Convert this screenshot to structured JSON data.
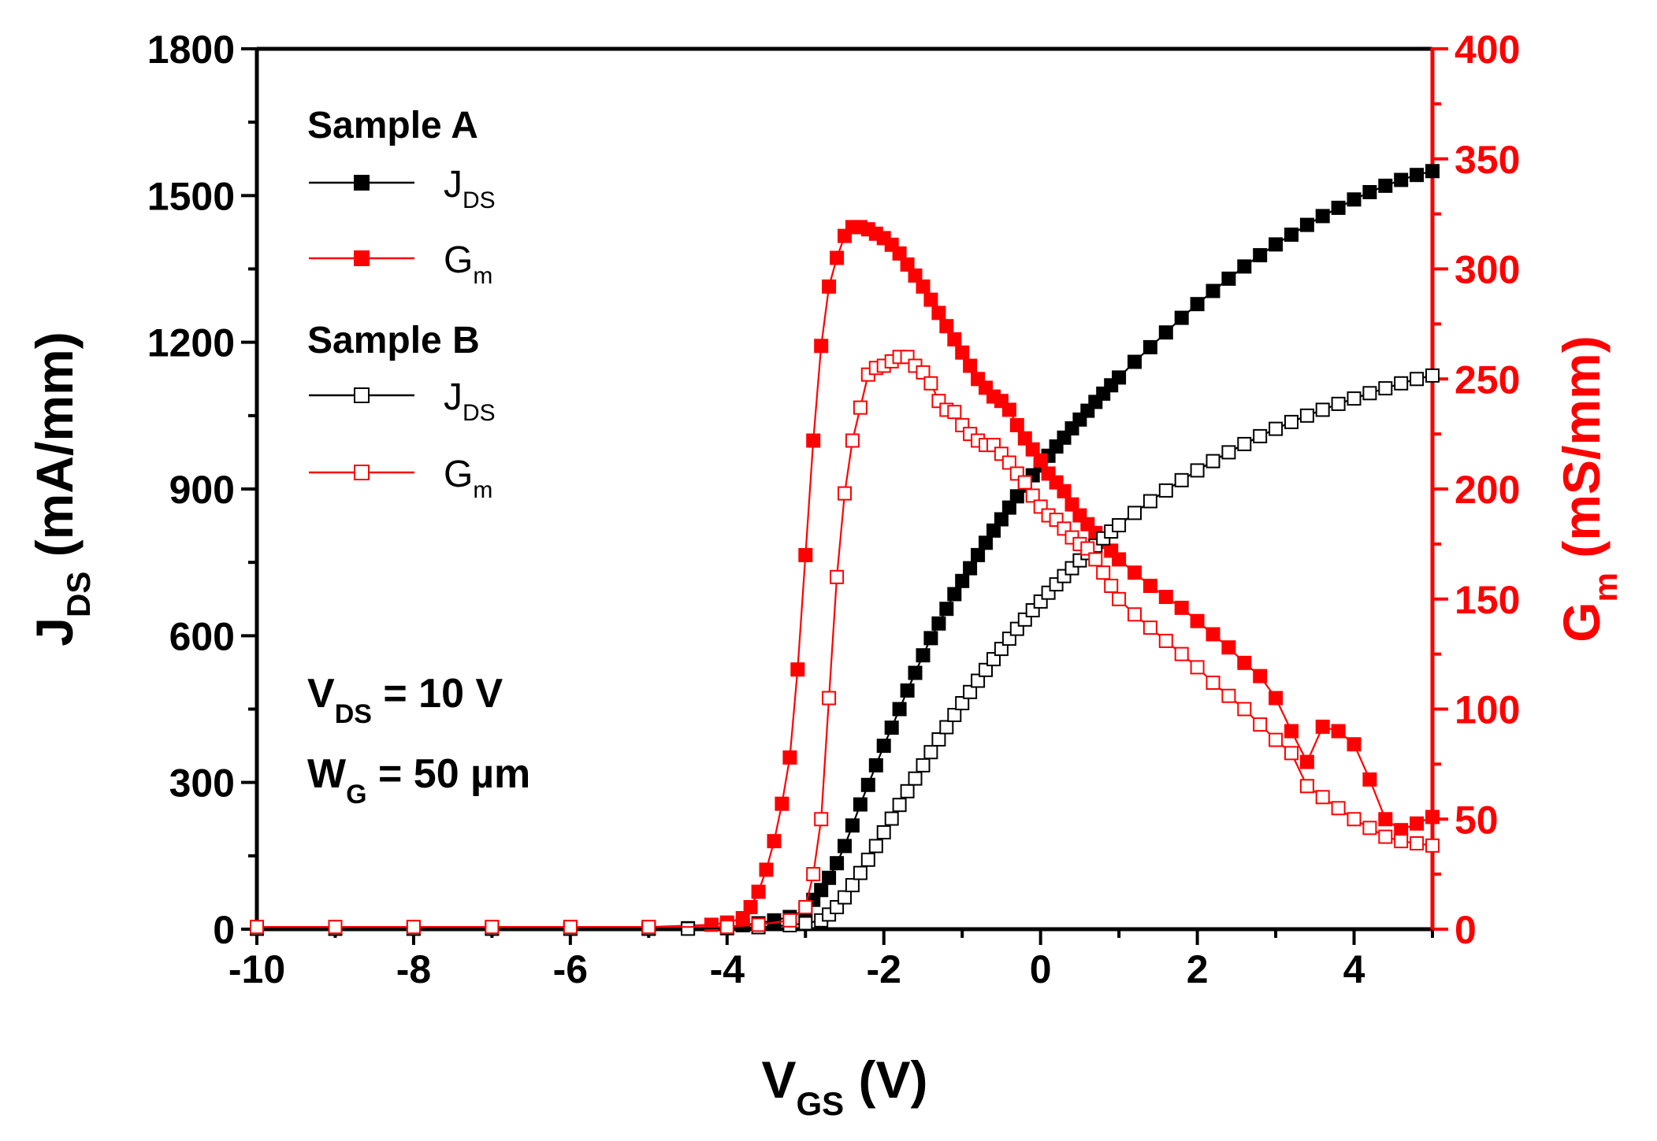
{
  "chart_data": {
    "type": "line",
    "title": "",
    "xlabel": {
      "main": "V",
      "sub": "GS",
      "unit": " (V)"
    },
    "ylabel_left": {
      "main": "J",
      "sub": "DS",
      "unit": " (mA/mm)"
    },
    "ylabel_right": {
      "main": "G",
      "sub": "m",
      "unit": " (mS/mm)"
    },
    "xlim": [
      -10,
      5
    ],
    "ylim_left": [
      0,
      1800
    ],
    "ylim_right": [
      0,
      400
    ],
    "x_ticks": [
      "-10",
      "-8",
      "-6",
      "-4",
      "-2",
      "0",
      "2",
      "4"
    ],
    "x_tick_values": [
      -10,
      -8,
      -6,
      -4,
      -2,
      0,
      2,
      4
    ],
    "y_left_ticks": [
      "0",
      "300",
      "600",
      "900",
      "1200",
      "1500",
      "1800"
    ],
    "y_left_tick_values": [
      0,
      300,
      600,
      900,
      1200,
      1500,
      1800
    ],
    "y_right_ticks": [
      "0",
      "50",
      "100",
      "150",
      "200",
      "250",
      "300",
      "350",
      "400"
    ],
    "y_right_tick_values": [
      0,
      50,
      100,
      150,
      200,
      250,
      300,
      350,
      400
    ],
    "colors": {
      "jds": "#000000",
      "gm": "#ff0000",
      "axis_right": "#ff0000",
      "axis_left": "#000000"
    },
    "legend": {
      "groups": [
        {
          "title": "Sample A",
          "entries": [
            {
              "main": "J",
              "sub": "DS",
              "color": "#000000",
              "marker": "filled-square"
            },
            {
              "main": "G",
              "sub": "m",
              "color": "#ff0000",
              "marker": "filled-square"
            }
          ]
        },
        {
          "title": "Sample B",
          "entries": [
            {
              "main": "J",
              "sub": "DS",
              "color": "#000000",
              "marker": "open-square"
            },
            {
              "main": "G",
              "sub": "m",
              "color": "#ff0000",
              "marker": "open-square"
            }
          ]
        }
      ],
      "location": "top-left"
    },
    "annotations": [
      {
        "main": "V",
        "sub": "DS",
        "rest": " = 10 V"
      },
      {
        "main": "W",
        "sub": "G",
        "rest": " = 50 µm"
      }
    ],
    "series": [
      {
        "name": "Sample A J_DS",
        "axis": "left",
        "color": "#000000",
        "marker": "filled-square",
        "points": [
          [
            -10,
            1
          ],
          [
            -9,
            1
          ],
          [
            -8,
            1
          ],
          [
            -7,
            1
          ],
          [
            -6,
            1
          ],
          [
            -5,
            1
          ],
          [
            -4.5,
            2
          ],
          [
            -4,
            4
          ],
          [
            -3.8,
            8
          ],
          [
            -3.6,
            12
          ],
          [
            -3.4,
            18
          ],
          [
            -3.2,
            25
          ],
          [
            -3.0,
            40
          ],
          [
            -2.9,
            60
          ],
          [
            -2.8,
            80
          ],
          [
            -2.7,
            105
          ],
          [
            -2.6,
            135
          ],
          [
            -2.5,
            170
          ],
          [
            -2.4,
            212
          ],
          [
            -2.3,
            255
          ],
          [
            -2.2,
            295
          ],
          [
            -2.1,
            335
          ],
          [
            -2.0,
            375
          ],
          [
            -1.9,
            412
          ],
          [
            -1.8,
            450
          ],
          [
            -1.7,
            488
          ],
          [
            -1.6,
            524
          ],
          [
            -1.5,
            560
          ],
          [
            -1.4,
            595
          ],
          [
            -1.3,
            625
          ],
          [
            -1.2,
            655
          ],
          [
            -1.1,
            685
          ],
          [
            -1.0,
            712
          ],
          [
            -0.9,
            738
          ],
          [
            -0.8,
            765
          ],
          [
            -0.7,
            790
          ],
          [
            -0.6,
            815
          ],
          [
            -0.5,
            838
          ],
          [
            -0.4,
            862
          ],
          [
            -0.3,
            885
          ],
          [
            -0.2,
            907
          ],
          [
            -0.1,
            928
          ],
          [
            0.0,
            948
          ],
          [
            0.1,
            968
          ],
          [
            0.2,
            987
          ],
          [
            0.3,
            1005
          ],
          [
            0.4,
            1024
          ],
          [
            0.5,
            1042
          ],
          [
            0.6,
            1060
          ],
          [
            0.7,
            1078
          ],
          [
            0.8,
            1095
          ],
          [
            0.9,
            1112
          ],
          [
            1.0,
            1128
          ],
          [
            1.2,
            1160
          ],
          [
            1.4,
            1190
          ],
          [
            1.6,
            1220
          ],
          [
            1.8,
            1250
          ],
          [
            2.0,
            1278
          ],
          [
            2.2,
            1305
          ],
          [
            2.4,
            1330
          ],
          [
            2.6,
            1355
          ],
          [
            2.8,
            1378
          ],
          [
            3.0,
            1400
          ],
          [
            3.2,
            1420
          ],
          [
            3.4,
            1440
          ],
          [
            3.6,
            1458
          ],
          [
            3.8,
            1475
          ],
          [
            4.0,
            1492
          ],
          [
            4.2,
            1507
          ],
          [
            4.4,
            1520
          ],
          [
            4.6,
            1532
          ],
          [
            4.8,
            1542
          ],
          [
            5.0,
            1550
          ]
        ]
      },
      {
        "name": "Sample A G_m",
        "axis": "right",
        "color": "#ff0000",
        "marker": "filled-square",
        "points": [
          [
            -10,
            1
          ],
          [
            -9,
            1
          ],
          [
            -8,
            1
          ],
          [
            -7,
            1
          ],
          [
            -6,
            1
          ],
          [
            -5,
            1
          ],
          [
            -4.2,
            2
          ],
          [
            -4.0,
            3
          ],
          [
            -3.8,
            5
          ],
          [
            -3.7,
            10
          ],
          [
            -3.6,
            17
          ],
          [
            -3.5,
            27
          ],
          [
            -3.4,
            40
          ],
          [
            -3.3,
            57
          ],
          [
            -3.2,
            78
          ],
          [
            -3.1,
            118
          ],
          [
            -3.0,
            170
          ],
          [
            -2.9,
            222
          ],
          [
            -2.8,
            265
          ],
          [
            -2.7,
            292
          ],
          [
            -2.6,
            305
          ],
          [
            -2.5,
            315
          ],
          [
            -2.4,
            319
          ],
          [
            -2.3,
            319
          ],
          [
            -2.2,
            318
          ],
          [
            -2.1,
            316
          ],
          [
            -2.0,
            314
          ],
          [
            -1.9,
            311
          ],
          [
            -1.8,
            307
          ],
          [
            -1.7,
            302
          ],
          [
            -1.6,
            297
          ],
          [
            -1.5,
            292
          ],
          [
            -1.4,
            286
          ],
          [
            -1.3,
            280
          ],
          [
            -1.2,
            274
          ],
          [
            -1.1,
            268
          ],
          [
            -1.0,
            262
          ],
          [
            -0.9,
            256
          ],
          [
            -0.8,
            250
          ],
          [
            -0.7,
            246
          ],
          [
            -0.6,
            242
          ],
          [
            -0.5,
            240
          ],
          [
            -0.4,
            236
          ],
          [
            -0.3,
            229
          ],
          [
            -0.2,
            223
          ],
          [
            -0.1,
            218
          ],
          [
            0.0,
            213
          ],
          [
            0.1,
            207
          ],
          [
            0.2,
            203
          ],
          [
            0.3,
            199
          ],
          [
            0.4,
            193
          ],
          [
            0.5,
            188
          ],
          [
            0.6,
            184
          ],
          [
            0.7,
            180
          ],
          [
            0.8,
            176
          ],
          [
            0.9,
            172
          ],
          [
            1.0,
            168
          ],
          [
            1.2,
            162
          ],
          [
            1.4,
            156
          ],
          [
            1.6,
            151
          ],
          [
            1.8,
            146
          ],
          [
            2.0,
            140
          ],
          [
            2.2,
            134
          ],
          [
            2.4,
            128
          ],
          [
            2.6,
            121
          ],
          [
            2.8,
            115
          ],
          [
            3.0,
            105
          ],
          [
            3.2,
            90
          ],
          [
            3.4,
            76
          ],
          [
            3.6,
            92
          ],
          [
            3.8,
            90
          ],
          [
            4.0,
            84
          ],
          [
            4.2,
            68
          ],
          [
            4.4,
            50
          ],
          [
            4.6,
            45
          ],
          [
            4.8,
            48
          ],
          [
            5.0,
            51
          ]
        ]
      },
      {
        "name": "Sample B J_DS",
        "axis": "left",
        "color": "#000000",
        "marker": "open-square",
        "points": [
          [
            -10,
            1
          ],
          [
            -9,
            1
          ],
          [
            -8,
            1
          ],
          [
            -7,
            1
          ],
          [
            -6,
            1
          ],
          [
            -5,
            1
          ],
          [
            -4.5,
            1
          ],
          [
            -4,
            2
          ],
          [
            -3.6,
            4
          ],
          [
            -3.2,
            8
          ],
          [
            -3.0,
            12
          ],
          [
            -2.8,
            18
          ],
          [
            -2.7,
            30
          ],
          [
            -2.6,
            45
          ],
          [
            -2.5,
            65
          ],
          [
            -2.4,
            90
          ],
          [
            -2.3,
            115
          ],
          [
            -2.2,
            142
          ],
          [
            -2.1,
            170
          ],
          [
            -2.0,
            198
          ],
          [
            -1.9,
            226
          ],
          [
            -1.8,
            254
          ],
          [
            -1.7,
            282
          ],
          [
            -1.6,
            308
          ],
          [
            -1.5,
            335
          ],
          [
            -1.4,
            362
          ],
          [
            -1.3,
            388
          ],
          [
            -1.2,
            413
          ],
          [
            -1.1,
            438
          ],
          [
            -1.0,
            462
          ],
          [
            -0.9,
            485
          ],
          [
            -0.8,
            508
          ],
          [
            -0.7,
            530
          ],
          [
            -0.6,
            552
          ],
          [
            -0.5,
            573
          ],
          [
            -0.4,
            594
          ],
          [
            -0.3,
            614
          ],
          [
            -0.2,
            633
          ],
          [
            -0.1,
            652
          ],
          [
            0.0,
            670
          ],
          [
            0.1,
            688
          ],
          [
            0.2,
            705
          ],
          [
            0.3,
            722
          ],
          [
            0.4,
            738
          ],
          [
            0.5,
            754
          ],
          [
            0.6,
            769
          ],
          [
            0.7,
            784
          ],
          [
            0.8,
            799
          ],
          [
            0.9,
            813
          ],
          [
            1.0,
            826
          ],
          [
            1.2,
            851
          ],
          [
            1.4,
            875
          ],
          [
            1.6,
            897
          ],
          [
            1.8,
            918
          ],
          [
            2.0,
            938
          ],
          [
            2.2,
            957
          ],
          [
            2.4,
            975
          ],
          [
            2.6,
            992
          ],
          [
            2.8,
            1008
          ],
          [
            3.0,
            1023
          ],
          [
            3.2,
            1037
          ],
          [
            3.4,
            1050
          ],
          [
            3.6,
            1062
          ],
          [
            3.8,
            1074
          ],
          [
            4.0,
            1085
          ],
          [
            4.2,
            1096
          ],
          [
            4.4,
            1106
          ],
          [
            4.6,
            1116
          ],
          [
            4.8,
            1125
          ],
          [
            5.0,
            1132
          ]
        ]
      },
      {
        "name": "Sample B G_m",
        "axis": "right",
        "color": "#ff0000",
        "marker": "open-square",
        "points": [
          [
            -10,
            1
          ],
          [
            -9,
            1
          ],
          [
            -8,
            1
          ],
          [
            -7,
            1
          ],
          [
            -6,
            1
          ],
          [
            -5,
            1
          ],
          [
            -4.0,
            1
          ],
          [
            -3.6,
            2
          ],
          [
            -3.2,
            4
          ],
          [
            -3.0,
            10
          ],
          [
            -2.9,
            25
          ],
          [
            -2.8,
            50
          ],
          [
            -2.7,
            105
          ],
          [
            -2.6,
            160
          ],
          [
            -2.5,
            198
          ],
          [
            -2.4,
            222
          ],
          [
            -2.3,
            237
          ],
          [
            -2.2,
            252
          ],
          [
            -2.1,
            255
          ],
          [
            -2.0,
            256
          ],
          [
            -1.9,
            258
          ],
          [
            -1.8,
            260
          ],
          [
            -1.7,
            260
          ],
          [
            -1.6,
            256
          ],
          [
            -1.5,
            253
          ],
          [
            -1.4,
            248
          ],
          [
            -1.3,
            240
          ],
          [
            -1.2,
            236
          ],
          [
            -1.1,
            235
          ],
          [
            -1.0,
            229
          ],
          [
            -0.9,
            225
          ],
          [
            -0.8,
            222
          ],
          [
            -0.7,
            220
          ],
          [
            -0.6,
            220
          ],
          [
            -0.5,
            216
          ],
          [
            -0.4,
            212
          ],
          [
            -0.3,
            207
          ],
          [
            -0.2,
            203
          ],
          [
            -0.1,
            197
          ],
          [
            0.0,
            192
          ],
          [
            0.1,
            188
          ],
          [
            0.2,
            186
          ],
          [
            0.3,
            182
          ],
          [
            0.4,
            178
          ],
          [
            0.5,
            175
          ],
          [
            0.6,
            173
          ],
          [
            0.7,
            168
          ],
          [
            0.8,
            162
          ],
          [
            0.9,
            156
          ],
          [
            1.0,
            150
          ],
          [
            1.2,
            143
          ],
          [
            1.4,
            137
          ],
          [
            1.6,
            131
          ],
          [
            1.8,
            125
          ],
          [
            2.0,
            119
          ],
          [
            2.2,
            112
          ],
          [
            2.4,
            106
          ],
          [
            2.6,
            100
          ],
          [
            2.8,
            93
          ],
          [
            3.0,
            86
          ],
          [
            3.2,
            80
          ],
          [
            3.4,
            65
          ],
          [
            3.6,
            60
          ],
          [
            3.8,
            55
          ],
          [
            4.0,
            50
          ],
          [
            4.2,
            46
          ],
          [
            4.4,
            42
          ],
          [
            4.6,
            40
          ],
          [
            4.8,
            39
          ],
          [
            5.0,
            38
          ]
        ]
      }
    ]
  }
}
